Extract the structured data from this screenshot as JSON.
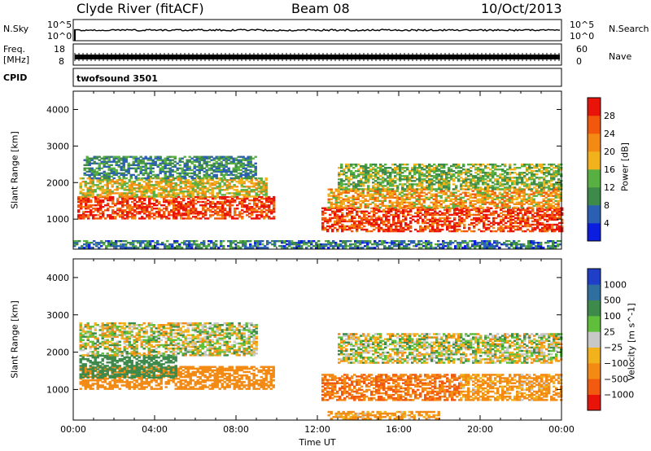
{
  "header": {
    "station": "Clyde River (fitACF)",
    "beam": "Beam 08",
    "date": "10/Oct/2013"
  },
  "top_panels": {
    "nsky_label": "N.Sky",
    "nsky_ticks": [
      "10^5",
      "10^0"
    ],
    "nsearch_label": "N.Search",
    "nsearch_ticks": [
      "10^5",
      "10^0"
    ],
    "freq_label": "Freq.",
    "freq_unit": "[MHz]",
    "freq_ticks": [
      "18",
      "8"
    ],
    "nave_label": "Nave",
    "nave_ticks": [
      "60",
      "0"
    ],
    "cpid_label": "CPID",
    "cpid_value": "twofsound 3501"
  },
  "chart_data": [
    {
      "type": "heatmap",
      "title": "",
      "ylabel": "Slant Range [km]",
      "xlabel": "",
      "ylim": [
        180,
        4500
      ],
      "xlim": [
        0,
        24
      ],
      "ytick_labels": [
        "1000",
        "2000",
        "3000",
        "4000"
      ],
      "yticks": [
        1000,
        2000,
        3000,
        4000
      ],
      "colorbar": {
        "label": "Power [dB]",
        "range": [
          0,
          32
        ],
        "tick_labels": [
          "4",
          "8",
          "12",
          "16",
          "20",
          "24",
          "28"
        ],
        "ticks": [
          4,
          8,
          12,
          16,
          20,
          24,
          28
        ],
        "colors": [
          "#0b1ee0",
          "#2a5fb4",
          "#3e8a4a",
          "#58b042",
          "#f2b21b",
          "#f28a14",
          "#f2580c",
          "#e8140a"
        ]
      },
      "echo_regions": [
        {
          "t0": 0.2,
          "t1": 9.8,
          "r0": 1000,
          "r1": 1600,
          "value": 28
        },
        {
          "t0": 0.3,
          "t1": 9.5,
          "r0": 1600,
          "r1": 2100,
          "value": 18
        },
        {
          "t0": 0.5,
          "t1": 9.0,
          "r0": 2100,
          "r1": 2700,
          "value": 10
        },
        {
          "t0": 12.2,
          "t1": 24.0,
          "r0": 650,
          "r1": 1300,
          "value": 28
        },
        {
          "t0": 12.5,
          "t1": 24.0,
          "r0": 1300,
          "r1": 1800,
          "value": 20
        },
        {
          "t0": 13.0,
          "t1": 24.0,
          "r0": 1800,
          "r1": 2500,
          "value": 14
        },
        {
          "t0": 0.0,
          "t1": 24.0,
          "r0": 200,
          "r1": 420,
          "value": 8
        }
      ]
    },
    {
      "type": "heatmap",
      "title": "",
      "ylabel": "Slant Range [km]",
      "xlabel": "Time UT",
      "ylim": [
        180,
        4500
      ],
      "xlim": [
        0,
        24
      ],
      "ytick_labels": [
        "1000",
        "2000",
        "3000",
        "4000"
      ],
      "yticks": [
        1000,
        2000,
        3000,
        4000
      ],
      "xtick_labels": [
        "00:00",
        "04:00",
        "08:00",
        "12:00",
        "16:00",
        "20:00",
        "00:00"
      ],
      "xticks": [
        0,
        4,
        8,
        12,
        16,
        20,
        24
      ],
      "colorbar": {
        "label": "Velocity [m s^-1]",
        "tick_labels": [
          "1000",
          "500",
          "100",
          "25",
          "−25",
          "−100",
          "−500",
          "−1000"
        ],
        "ticks": [
          1000,
          500,
          100,
          25,
          -25,
          -100,
          -500,
          -1000
        ],
        "colors": [
          "#1f3fc8",
          "#2f6fa0",
          "#3e8a4a",
          "#5fbf3a",
          "#c8c8c8",
          "#f2b21b",
          "#f28a14",
          "#f25a10",
          "#e8140a"
        ]
      },
      "echo_regions": [
        {
          "t0": 0.3,
          "t1": 9.8,
          "r0": 1000,
          "r1": 1600,
          "value": -300
        },
        {
          "t0": 0.3,
          "t1": 5.0,
          "r0": 1300,
          "r1": 1900,
          "value": 300
        },
        {
          "t0": 0.3,
          "t1": 9.0,
          "r0": 1900,
          "r1": 2800,
          "value": 0
        },
        {
          "t0": 12.2,
          "t1": 19.0,
          "r0": 700,
          "r1": 1400,
          "value": -500
        },
        {
          "t0": 19.0,
          "t1": 24.0,
          "r0": 700,
          "r1": 1400,
          "value": -150
        },
        {
          "t0": 13.0,
          "t1": 24.0,
          "r0": 1700,
          "r1": 2500,
          "value": 0
        },
        {
          "t0": 12.5,
          "t1": 18.0,
          "r0": 200,
          "r1": 420,
          "value": -150
        }
      ]
    }
  ]
}
